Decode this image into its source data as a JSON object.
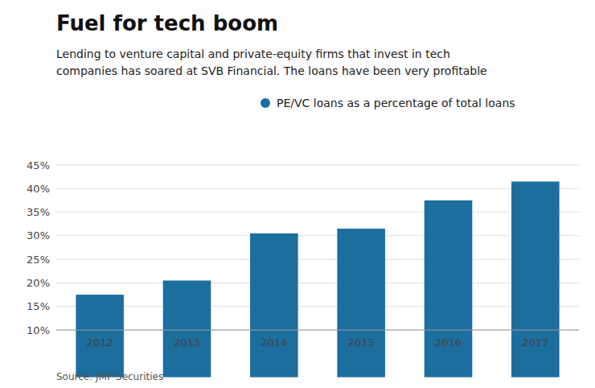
{
  "chart_data": {
    "type": "bar",
    "title": "Fuel for tech boom",
    "subtitle": "Lending to venture capital and private-equity firms that invest in tech\ncompanies has soared at SVB Financial. The loans have been very profitable",
    "source": "Source: JMP Securities",
    "categories": [
      "2012",
      "2013",
      "2014",
      "2015",
      "2016",
      "2017"
    ],
    "series": [
      {
        "name": "PE/VC loans as a percentage of total loans",
        "color": "#1c6e9f",
        "values": [
          17.5,
          20.5,
          30.5,
          31.5,
          37.5,
          41.5
        ]
      }
    ],
    "ylim": [
      10,
      45
    ],
    "yticks": [
      {
        "value": 10,
        "label": "10%"
      },
      {
        "value": 15,
        "label": "15%"
      },
      {
        "value": 20,
        "label": "20%"
      },
      {
        "value": 25,
        "label": "25%"
      },
      {
        "value": 30,
        "label": "30%"
      },
      {
        "value": 35,
        "label": "35%"
      },
      {
        "value": 40,
        "label": "40%"
      },
      {
        "value": 45,
        "label": "45%"
      }
    ],
    "grid": true,
    "legend": "top"
  }
}
